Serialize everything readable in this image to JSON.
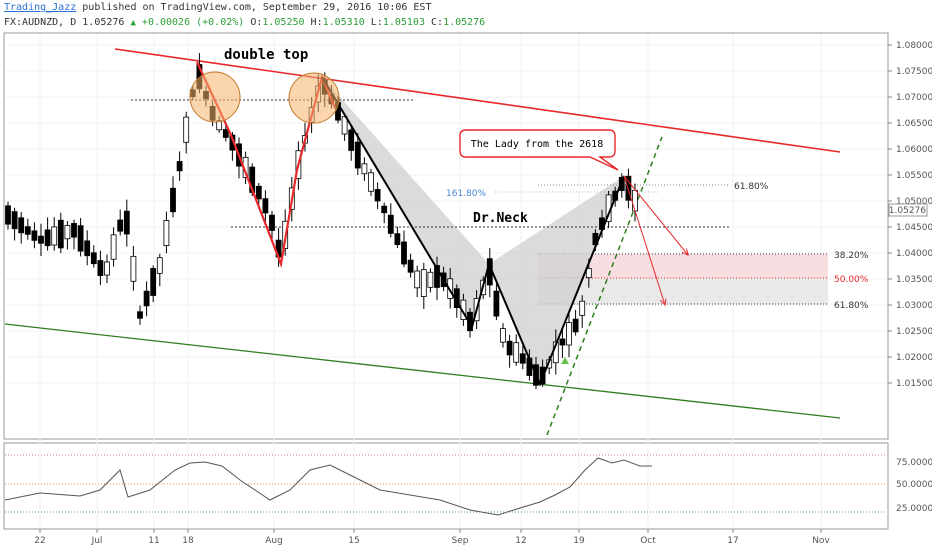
{
  "header": {
    "author": "Trading_Jazz",
    "published": "published on TradingView.com, September 29, 2016 10:06 EST",
    "symbol": "FX:AUDNZD, D",
    "last": "1.05276",
    "change": "+0.00026 (+0.02%)",
    "open_label": "O:",
    "open": "1.05250",
    "high_label": "H:",
    "high": "1.05310",
    "low_label": "L:",
    "low": "1.05103",
    "close_label": "C:",
    "close": "1.05276"
  },
  "chart_data": {
    "type": "candlestick",
    "price_axis": {
      "ticks": [
        "1.08000",
        "1.07500",
        "1.07000",
        "1.06500",
        "1.06000",
        "1.05500",
        "1.05000",
        "1.04500",
        "1.04000",
        "1.03500",
        "1.03000",
        "1.02500",
        "1.02000",
        "1.01500"
      ],
      "last_price_label": "1.05276",
      "range": [
        1.015,
        1.0825
      ]
    },
    "time_axis": {
      "ticks": [
        "22",
        "Jul",
        "11",
        "18",
        "Aug",
        "15",
        "Sep",
        "12",
        "19",
        "Oct",
        "17",
        "Nov"
      ]
    },
    "oscillator": {
      "ticks": [
        "75.0000",
        "50.0000",
        "25.0000"
      ],
      "levels": [
        80,
        50,
        20
      ]
    },
    "annotations": {
      "double_top": "double top",
      "callout": "The Lady from the 2618",
      "neckline": "Dr.Neck",
      "ext_1618": "161.80%",
      "ext_618_top": "61.80%",
      "fib_382": "38.20%",
      "fib_500": "50.00%",
      "fib_618": "61.80%"
    },
    "colors": {
      "up": "#ffffff",
      "down": "#000000",
      "resistance": "#e8282b",
      "support": "#2e7d1f",
      "pattern": "#000000",
      "fib_zone": "#f6d4d9",
      "rsi": "#555555"
    }
  }
}
